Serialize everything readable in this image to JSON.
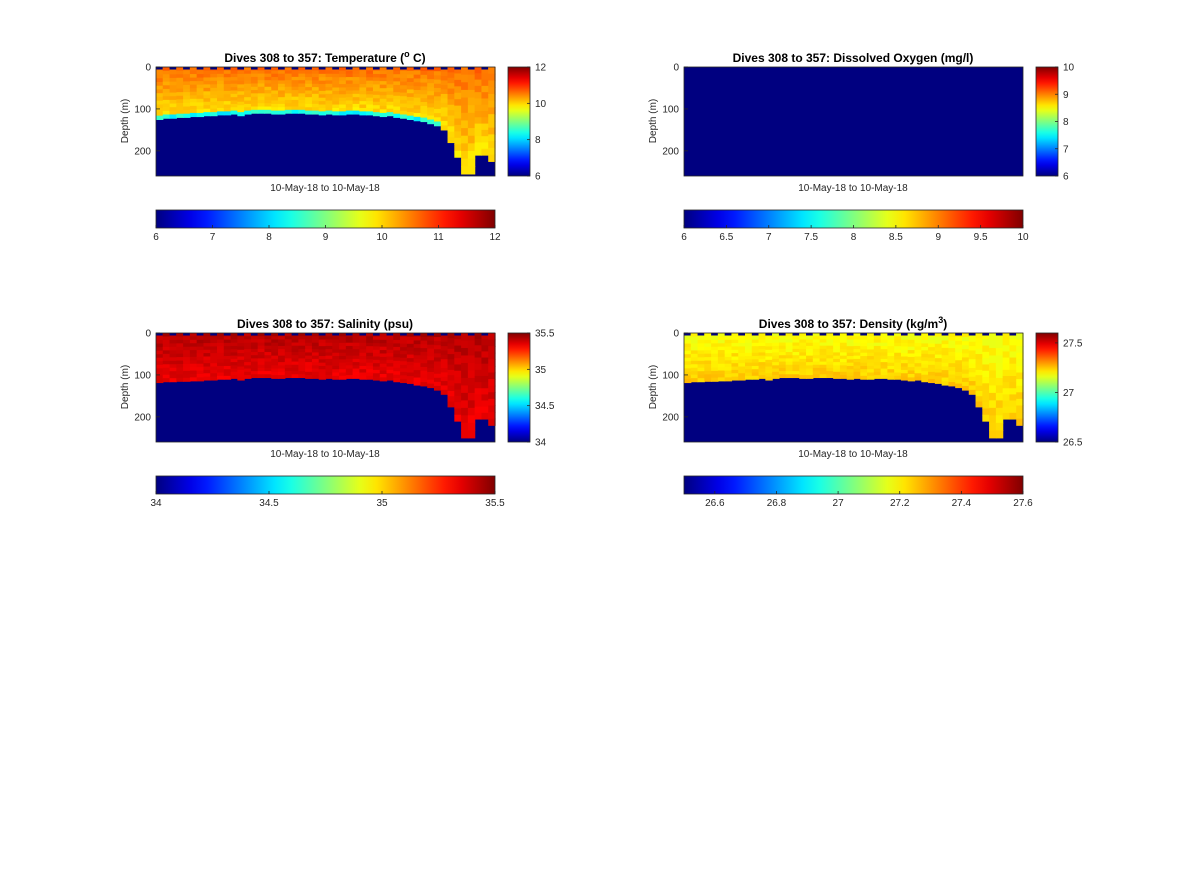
{
  "chart_data": [
    {
      "type": "heatmap",
      "variable": "temperature",
      "title": "Dives 308 to 357: Temperature (",
      "title_unit_sup": "o",
      "title_tail": " C)",
      "xlabel": "10-May-18 to 10-May-18",
      "ylabel": "Depth (m)",
      "dives": [
        308,
        357
      ],
      "ylim": [
        0,
        260
      ],
      "y_reversed": true,
      "y_ticks": [
        "0",
        "100",
        "200"
      ],
      "clim": [
        6,
        12
      ],
      "side_colorbar_ticks": [
        "6",
        "8",
        "10",
        "12"
      ],
      "bottom_colorbar_ticks": [
        "6",
        "7",
        "8",
        "9",
        "10",
        "11",
        "12"
      ],
      "surface_value": 10.6,
      "deep_value": 9.9,
      "transition_value": 8.3,
      "below_bottom_value": 6,
      "max_depth_by_dive": [
        125,
        122,
        122,
        120,
        120,
        118,
        118,
        116,
        116,
        114,
        114,
        112,
        116,
        112,
        110,
        110,
        110,
        112,
        112,
        110,
        110,
        110,
        112,
        112,
        114,
        112,
        114,
        114,
        112,
        112,
        114,
        114,
        116,
        118,
        116,
        120,
        122,
        125,
        128,
        130,
        135,
        140,
        150,
        180,
        215,
        255,
        255,
        210,
        210,
        225
      ]
    },
    {
      "type": "heatmap",
      "variable": "dissolved_oxygen",
      "title": "Dives 308 to 357: Dissolved Oxygen (mg/l)",
      "xlabel": "10-May-18 to 10-May-18",
      "ylabel": "Depth (m)",
      "dives": [
        308,
        357
      ],
      "ylim": [
        0,
        260
      ],
      "y_reversed": true,
      "y_ticks": [
        "0",
        "100",
        "200"
      ],
      "clim": [
        6,
        10
      ],
      "side_colorbar_ticks": [
        "6",
        "7",
        "8",
        "9",
        "10"
      ],
      "bottom_colorbar_ticks": [
        "6",
        "6.5",
        "7",
        "7.5",
        "8",
        "8.5",
        "9",
        "9.5",
        "10"
      ],
      "fill_value": 6
    },
    {
      "type": "heatmap",
      "variable": "salinity",
      "title": "Dives 308 to 357: Salinity (psu)",
      "xlabel": "10-May-18 to 10-May-18",
      "ylabel": "Depth (m)",
      "dives": [
        308,
        357
      ],
      "ylim": [
        0,
        260
      ],
      "y_reversed": true,
      "y_ticks": [
        "0",
        "100",
        "200"
      ],
      "clim": [
        34,
        35.5
      ],
      "side_colorbar_ticks": [
        "34",
        "34.5",
        "35",
        "35.5"
      ],
      "bottom_colorbar_ticks": [
        "34",
        "34.5",
        "35",
        "35.5"
      ],
      "surface_value": 35.42,
      "deep_value": 35.34,
      "below_bottom_value": 34,
      "max_depth_by_dive": [
        118,
        116,
        116,
        115,
        115,
        114,
        114,
        112,
        112,
        110,
        110,
        108,
        112,
        108,
        106,
        106,
        106,
        108,
        108,
        106,
        106,
        106,
        108,
        108,
        110,
        108,
        110,
        110,
        108,
        108,
        110,
        110,
        112,
        114,
        112,
        116,
        118,
        120,
        124,
        126,
        130,
        136,
        146,
        176,
        210,
        250,
        250,
        205,
        205,
        220
      ]
    },
    {
      "type": "heatmap",
      "variable": "density",
      "title": "Dives 308 to 357: Density (kg/m",
      "title_unit_sup": "3",
      "title_tail": ")",
      "xlabel": "10-May-18 to 10-May-18",
      "ylabel": "Depth (m)",
      "dives": [
        308,
        357
      ],
      "ylim": [
        0,
        260
      ],
      "y_reversed": true,
      "y_ticks": [
        "0",
        "100",
        "200"
      ],
      "clim": [
        26.5,
        27.6
      ],
      "side_colorbar_ticks": [
        "26.5",
        "27",
        "27.5"
      ],
      "bottom_colorbar_ticks": [
        "26.6",
        "26.8",
        "27",
        "27.2",
        "27.4",
        "27.6"
      ],
      "surface_value": 27.18,
      "deep_value": 27.24,
      "below_bottom_value": 26.5,
      "max_depth_by_dive": [
        118,
        116,
        116,
        115,
        115,
        114,
        114,
        112,
        112,
        110,
        110,
        108,
        112,
        108,
        106,
        106,
        106,
        108,
        108,
        106,
        106,
        106,
        108,
        108,
        110,
        108,
        110,
        110,
        108,
        108,
        110,
        110,
        112,
        114,
        112,
        116,
        118,
        120,
        124,
        126,
        130,
        136,
        146,
        176,
        210,
        250,
        250,
        205,
        205,
        220
      ]
    }
  ]
}
